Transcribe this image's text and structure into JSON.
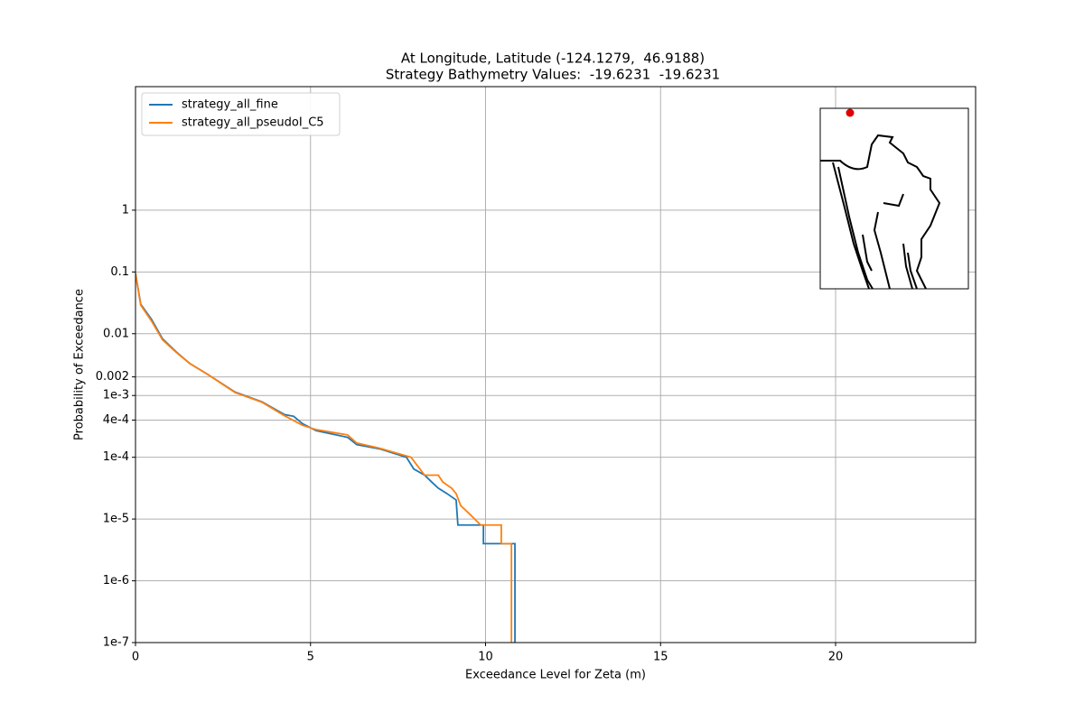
{
  "chart_data": {
    "type": "line",
    "title": [
      "At Longitude, Latitude (-124.1279,  46.9188)",
      "Strategy Bathymetry Values:  -19.6231  -19.6231"
    ],
    "x_label": "Exceedance Level for Zeta (m)",
    "y_label": "Probability of Exceedance",
    "xlim": [
      0,
      24
    ],
    "xticks": [
      0,
      5,
      10,
      15,
      20
    ],
    "ylim": [
      1e-07,
      100
    ],
    "yscale": "log",
    "yticks": [
      {
        "value": 1e-07,
        "label": "1e-7"
      },
      {
        "value": 1e-06,
        "label": "1e-6"
      },
      {
        "value": 1e-05,
        "label": "1e-5"
      },
      {
        "value": 0.0001,
        "label": "1e-4"
      },
      {
        "value": 0.0004,
        "label": "4e-4"
      },
      {
        "value": 0.001,
        "label": "1e-3"
      },
      0.002,
      0.01,
      0.1,
      1
    ],
    "grid": true,
    "legend": "upper left",
    "series": [
      {
        "name": "strategy_all_fine",
        "color": "#1f77b4",
        "x": [
          0,
          0.15,
          0.46,
          0.77,
          1.16,
          1.55,
          2.06,
          2.84,
          3.61,
          4.26,
          4.52,
          4.77,
          5.16,
          6.06,
          6.32,
          6.97,
          7.74,
          7.95,
          8.26,
          8.46,
          8.65,
          8.9,
          9.16,
          9.21,
          9.94,
          9.94,
          10.84,
          10.84
        ],
        "values": [
          0.095,
          0.03,
          0.017,
          0.0083,
          0.0051,
          0.0033,
          0.0022,
          0.00114,
          0.00079,
          0.00049,
          0.00046,
          0.00035,
          0.00027,
          0.00021,
          0.00016,
          0.000137,
          0.0001,
          6.46e-05,
          5.13e-05,
          3.98e-05,
          3.16e-05,
          2.58e-05,
          2.03e-05,
          8e-06,
          8e-06,
          4e-06,
          4e-06,
          1e-07
        ]
      },
      {
        "name": "strategy_all_pseudoI_C5",
        "color": "#ff7f0e",
        "x": [
          0,
          0.15,
          0.46,
          0.77,
          1.16,
          1.55,
          2.06,
          2.84,
          3.61,
          4.26,
          4.77,
          5.16,
          6.06,
          6.32,
          6.97,
          7.87,
          8.26,
          8.65,
          8.78,
          9.03,
          9.16,
          9.29,
          9.55,
          9.86,
          10.45,
          10.45,
          10.74,
          10.74
        ],
        "values": [
          0.095,
          0.029,
          0.016,
          0.008,
          0.005,
          0.0033,
          0.0022,
          0.00112,
          0.00078,
          0.00047,
          0.00033,
          0.00028,
          0.00023,
          0.00017,
          0.00014,
          0.0001,
          5.13e-05,
          5.13e-05,
          3.98e-05,
          3.16e-05,
          2.58e-05,
          1.65e-05,
          1.2e-05,
          8e-06,
          8e-06,
          4e-06,
          4e-06,
          1e-07
        ]
      }
    ]
  }
}
